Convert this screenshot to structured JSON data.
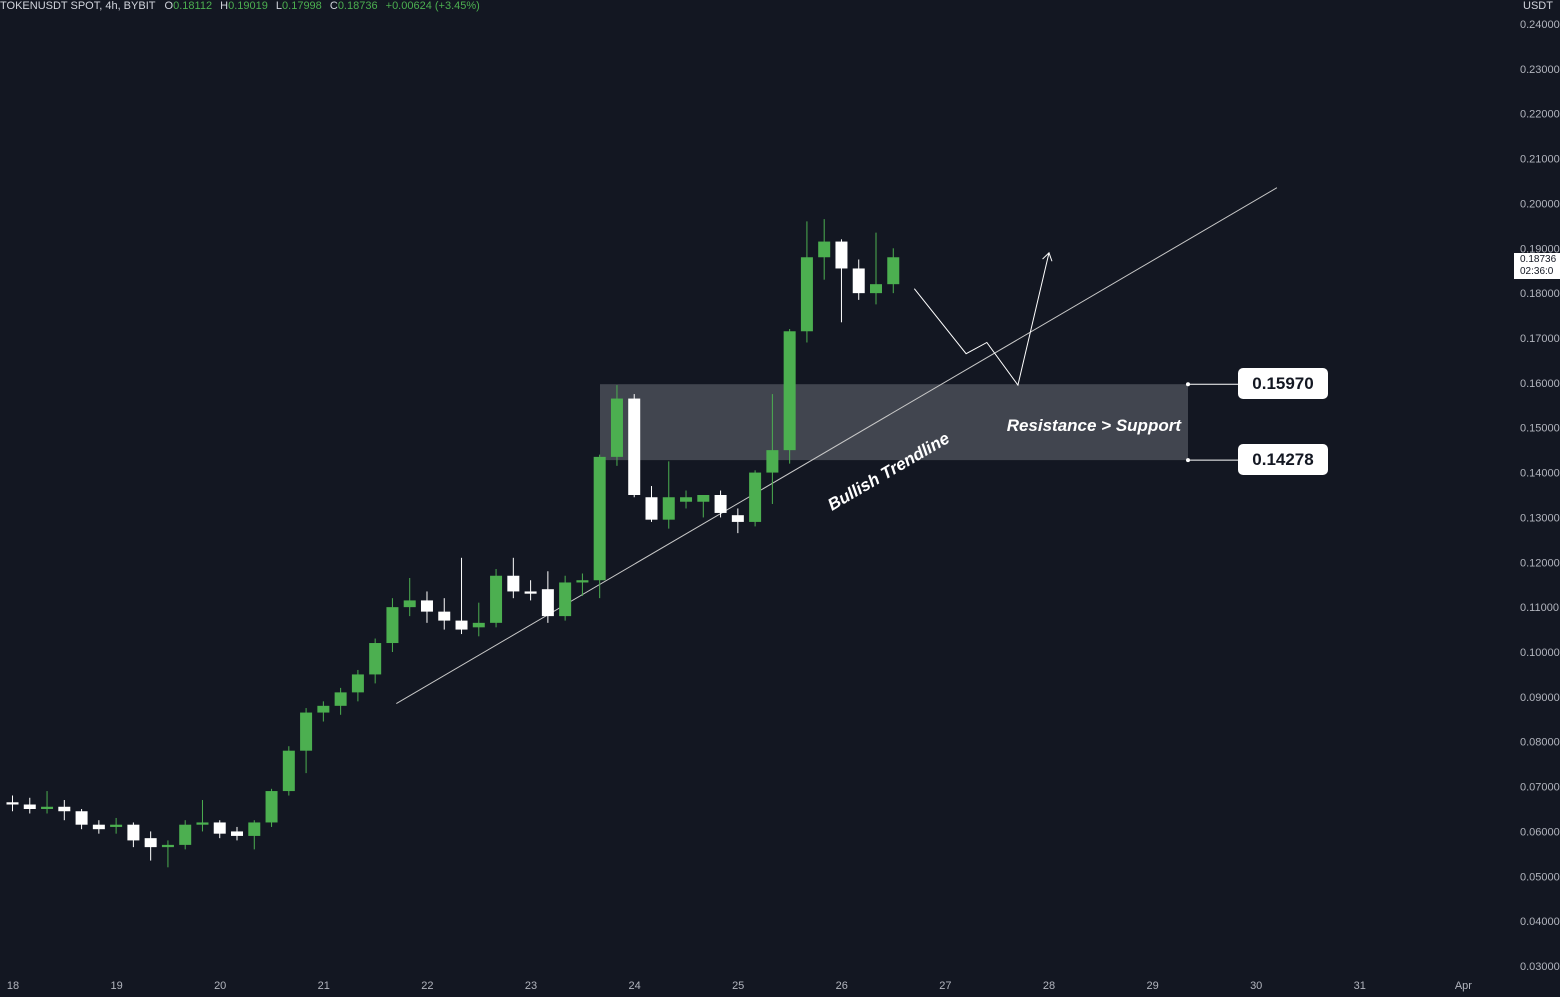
{
  "legend": {
    "symbol": "TOKENUSDT SPOT, 4h, BYBIT",
    "o_label": "O",
    "o": "0.18112",
    "h_label": "H",
    "h": "0.19019",
    "l_label": "L",
    "l": "0.17998",
    "c_label": "C",
    "c": "0.18736",
    "change": "+0.00624 (+3.45%)"
  },
  "price_scale": {
    "currency": "USDT",
    "last_price": "0.18736",
    "countdown": "02:36:0"
  },
  "levels": {
    "upper": "0.15970",
    "lower": "0.14278"
  },
  "annotations": {
    "zone_label": "Resistance > Support",
    "trendline_label": "Bullish Trendline"
  },
  "colors": {
    "background": "#131722",
    "bullish": "#4caf50",
    "bearish": "#ffffff",
    "zone": "#4a4d57",
    "trendline": "#c8c8c8"
  },
  "chart_data": {
    "type": "candlestick",
    "ylim": [
      0.03,
      0.24
    ],
    "y_ticks": [
      "0.24000",
      "0.23000",
      "0.22000",
      "0.21000",
      "0.20000",
      "0.19000",
      "0.18000",
      "0.17000",
      "0.16000",
      "0.15000",
      "0.14000",
      "0.13000",
      "0.12000",
      "0.11000",
      "0.10000",
      "0.09000",
      "0.08000",
      "0.07000",
      "0.06000",
      "0.05000",
      "0.04000",
      "0.03000"
    ],
    "x_ticks": [
      "18",
      "19",
      "20",
      "21",
      "22",
      "23",
      "24",
      "25",
      "26",
      "27",
      "28",
      "29",
      "30",
      "31",
      "Apr"
    ],
    "candles": [
      {
        "o": 0.0665,
        "h": 0.068,
        "l": 0.0645,
        "c": 0.066
      },
      {
        "o": 0.066,
        "h": 0.0675,
        "l": 0.064,
        "c": 0.065
      },
      {
        "o": 0.065,
        "h": 0.069,
        "l": 0.064,
        "c": 0.0655
      },
      {
        "o": 0.0655,
        "h": 0.067,
        "l": 0.0625,
        "c": 0.0645
      },
      {
        "o": 0.0645,
        "h": 0.065,
        "l": 0.0605,
        "c": 0.0615
      },
      {
        "o": 0.0615,
        "h": 0.0625,
        "l": 0.0595,
        "c": 0.0605
      },
      {
        "o": 0.061,
        "h": 0.063,
        "l": 0.0595,
        "c": 0.0615
      },
      {
        "o": 0.0615,
        "h": 0.062,
        "l": 0.0565,
        "c": 0.058
      },
      {
        "o": 0.0585,
        "h": 0.06,
        "l": 0.0535,
        "c": 0.0565
      },
      {
        "o": 0.0565,
        "h": 0.058,
        "l": 0.052,
        "c": 0.057
      },
      {
        "o": 0.057,
        "h": 0.0625,
        "l": 0.056,
        "c": 0.0615
      },
      {
        "o": 0.0615,
        "h": 0.067,
        "l": 0.06,
        "c": 0.062
      },
      {
        "o": 0.062,
        "h": 0.0625,
        "l": 0.0585,
        "c": 0.0595
      },
      {
        "o": 0.06,
        "h": 0.061,
        "l": 0.058,
        "c": 0.059
      },
      {
        "o": 0.059,
        "h": 0.0625,
        "l": 0.056,
        "c": 0.062
      },
      {
        "o": 0.062,
        "h": 0.0695,
        "l": 0.061,
        "c": 0.069
      },
      {
        "o": 0.069,
        "h": 0.079,
        "l": 0.068,
        "c": 0.078
      },
      {
        "o": 0.078,
        "h": 0.0875,
        "l": 0.073,
        "c": 0.0865
      },
      {
        "o": 0.0865,
        "h": 0.089,
        "l": 0.0845,
        "c": 0.088
      },
      {
        "o": 0.088,
        "h": 0.092,
        "l": 0.086,
        "c": 0.091
      },
      {
        "o": 0.091,
        "h": 0.096,
        "l": 0.089,
        "c": 0.095
      },
      {
        "o": 0.095,
        "h": 0.103,
        "l": 0.093,
        "c": 0.102
      },
      {
        "o": 0.102,
        "h": 0.112,
        "l": 0.1,
        "c": 0.11
      },
      {
        "o": 0.11,
        "h": 0.1165,
        "l": 0.108,
        "c": 0.1115
      },
      {
        "o": 0.1115,
        "h": 0.1135,
        "l": 0.1065,
        "c": 0.109
      },
      {
        "o": 0.109,
        "h": 0.112,
        "l": 0.105,
        "c": 0.107
      },
      {
        "o": 0.107,
        "h": 0.121,
        "l": 0.104,
        "c": 0.105
      },
      {
        "o": 0.1055,
        "h": 0.111,
        "l": 0.1035,
        "c": 0.1065
      },
      {
        "o": 0.1065,
        "h": 0.1185,
        "l": 0.1055,
        "c": 0.117
      },
      {
        "o": 0.117,
        "h": 0.121,
        "l": 0.112,
        "c": 0.1135
      },
      {
        "o": 0.1135,
        "h": 0.116,
        "l": 0.1115,
        "c": 0.113
      },
      {
        "o": 0.114,
        "h": 0.118,
        "l": 0.1065,
        "c": 0.108
      },
      {
        "o": 0.108,
        "h": 0.117,
        "l": 0.107,
        "c": 0.1155
      },
      {
        "o": 0.1155,
        "h": 0.1175,
        "l": 0.1125,
        "c": 0.116
      },
      {
        "o": 0.116,
        "h": 0.144,
        "l": 0.112,
        "c": 0.1435
      },
      {
        "o": 0.1435,
        "h": 0.1595,
        "l": 0.1415,
        "c": 0.1565
      },
      {
        "o": 0.1565,
        "h": 0.1575,
        "l": 0.1345,
        "c": 0.135
      },
      {
        "o": 0.1345,
        "h": 0.137,
        "l": 0.129,
        "c": 0.1295
      },
      {
        "o": 0.1295,
        "h": 0.1425,
        "l": 0.1275,
        "c": 0.1345
      },
      {
        "o": 0.1335,
        "h": 0.136,
        "l": 0.132,
        "c": 0.1345
      },
      {
        "o": 0.1335,
        "h": 0.135,
        "l": 0.13,
        "c": 0.135
      },
      {
        "o": 0.135,
        "h": 0.136,
        "l": 0.13,
        "c": 0.131
      },
      {
        "o": 0.1305,
        "h": 0.132,
        "l": 0.1265,
        "c": 0.129
      },
      {
        "o": 0.129,
        "h": 0.1405,
        "l": 0.128,
        "c": 0.14
      },
      {
        "o": 0.14,
        "h": 0.1575,
        "l": 0.133,
        "c": 0.145
      },
      {
        "o": 0.145,
        "h": 0.172,
        "l": 0.142,
        "c": 0.1715
      },
      {
        "o": 0.1715,
        "h": 0.196,
        "l": 0.169,
        "c": 0.188
      },
      {
        "o": 0.188,
        "h": 0.1965,
        "l": 0.183,
        "c": 0.1915
      },
      {
        "o": 0.1915,
        "h": 0.192,
        "l": 0.1735,
        "c": 0.1855
      },
      {
        "o": 0.1855,
        "h": 0.1875,
        "l": 0.1785,
        "c": 0.18
      },
      {
        "o": 0.18,
        "h": 0.1935,
        "l": 0.1775,
        "c": 0.182
      },
      {
        "o": 0.182,
        "h": 0.19,
        "l": 0.18,
        "c": 0.188
      }
    ],
    "zone": {
      "top": 0.1597,
      "bottom": 0.14278
    },
    "trendline": {
      "from": [
        21.7,
        0.0885
      ],
      "to": [
        30.2,
        0.2035
      ]
    },
    "projection": [
      [
        26.7,
        0.181
      ],
      [
        27.2,
        0.1665
      ],
      [
        27.4,
        0.169
      ],
      [
        27.7,
        0.1595
      ],
      [
        28.0,
        0.189
      ]
    ]
  }
}
